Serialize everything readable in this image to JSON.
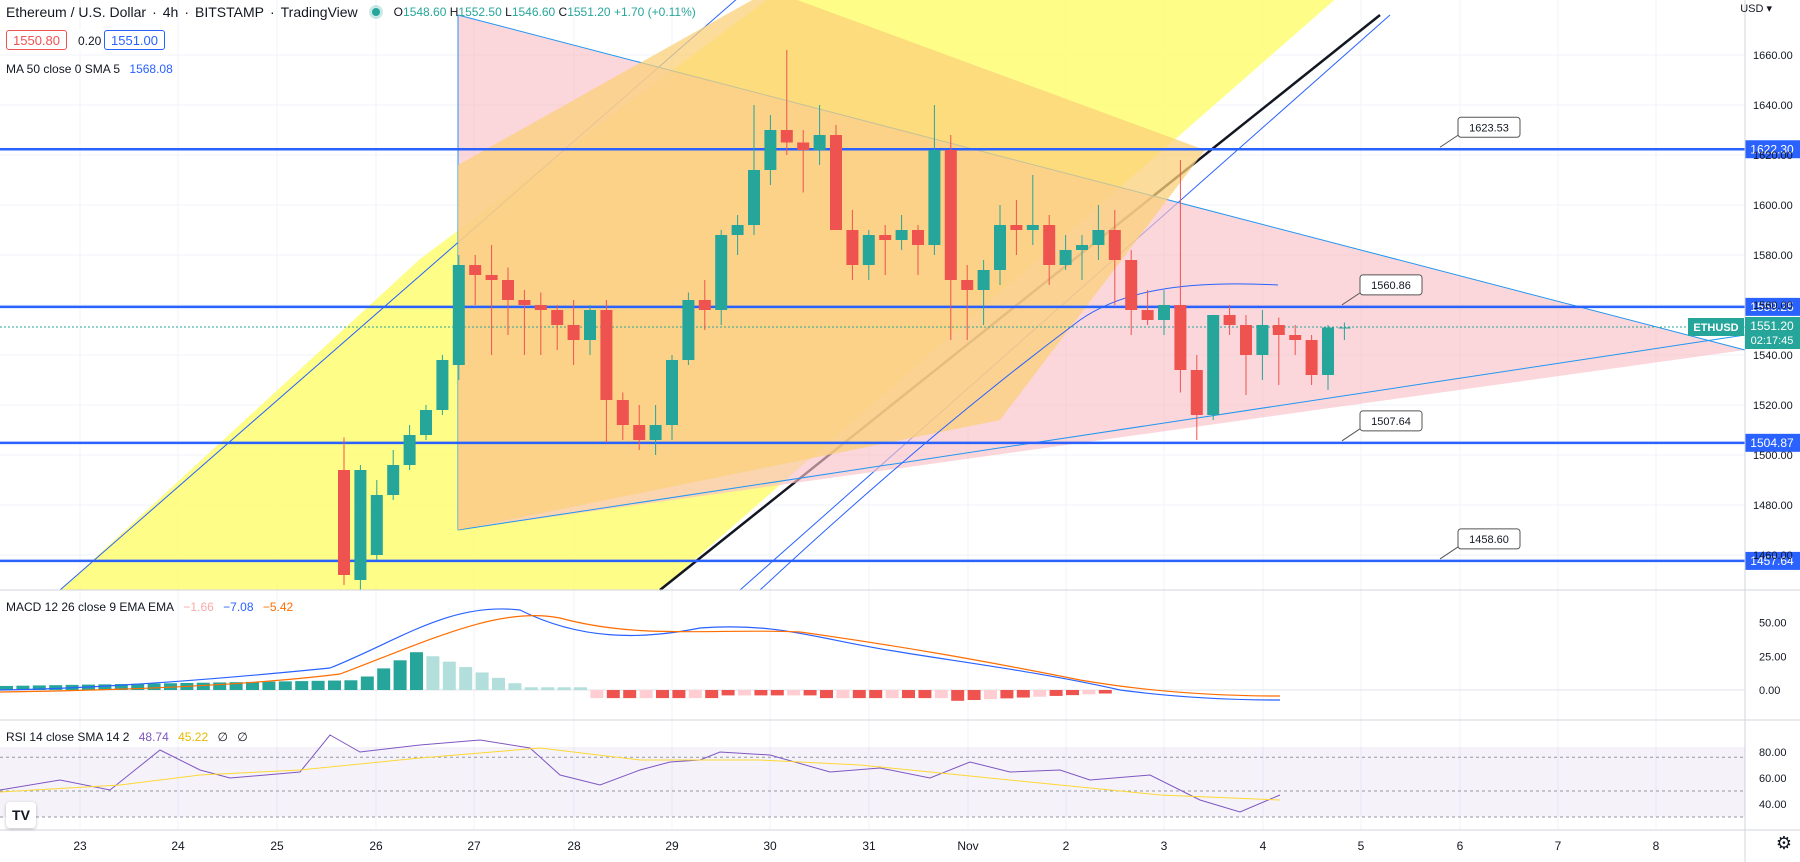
{
  "header": {
    "symbol": "Ethereum / U.S. Dollar",
    "interval": "4h",
    "exchange": "BITSTAMP",
    "platform": "TradingView",
    "ohlc": {
      "o": "1548.60",
      "h": "1552.50",
      "l": "1546.60",
      "c": "1551.20",
      "chg": "+1.70 (+0.11%)"
    },
    "bid": "1550.80",
    "spread": "0.20",
    "ask": "1551.00",
    "currency": "USD"
  },
  "indicators": {
    "ma": {
      "label": "MA 50 close 0 SMA 5",
      "value": "1568.08"
    },
    "macd": {
      "label": "MACD 12 26 close 9 EMA EMA",
      "hist": "−1.66",
      "macd": "−7.08",
      "signal": "−5.42"
    },
    "rsi": {
      "label": "RSI 14 close SMA 14 2",
      "rsi": "48.74",
      "sma": "45.22",
      "x1": "∅",
      "x2": "∅"
    }
  },
  "chart_data": [
    {
      "type": "candlestick",
      "panel": "price",
      "x": [
        "23",
        "24",
        "25",
        "26",
        "27",
        "28",
        "29",
        "30",
        "31",
        "Nov",
        "2",
        "3",
        "4",
        "5",
        "6",
        "7",
        "8"
      ],
      "y_ticks": [
        1460,
        1480,
        1500,
        1520,
        1540,
        1560,
        1580,
        1600,
        1620,
        1640,
        1660
      ],
      "ylim": [
        1446,
        1682
      ],
      "candles": [
        [
          1494,
          1507,
          1448,
          1452
        ],
        [
          1450,
          1496,
          1446,
          1494
        ],
        [
          1460,
          1490,
          1458,
          1484
        ],
        [
          1484,
          1502,
          1482,
          1496
        ],
        [
          1496,
          1512,
          1494,
          1508
        ],
        [
          1508,
          1520,
          1506,
          1518
        ],
        [
          1518,
          1540,
          1516,
          1538
        ],
        [
          1536,
          1580,
          1530,
          1576
        ],
        [
          1576,
          1580,
          1560,
          1572
        ],
        [
          1572,
          1584,
          1540,
          1570
        ],
        [
          1570,
          1575,
          1548,
          1562
        ],
        [
          1562,
          1566,
          1540,
          1560
        ],
        [
          1560,
          1565,
          1540,
          1558
        ],
        [
          1558,
          1560,
          1542,
          1552
        ],
        [
          1552,
          1562,
          1536,
          1546
        ],
        [
          1546,
          1560,
          1540,
          1558
        ],
        [
          1558,
          1562,
          1505,
          1522
        ],
        [
          1522,
          1525,
          1506,
          1512
        ],
        [
          1512,
          1520,
          1502,
          1506
        ],
        [
          1506,
          1520,
          1500,
          1512
        ],
        [
          1512,
          1540,
          1506,
          1538
        ],
        [
          1538,
          1565,
          1536,
          1562
        ],
        [
          1562,
          1570,
          1550,
          1558
        ],
        [
          1558,
          1590,
          1552,
          1588
        ],
        [
          1588,
          1596,
          1580,
          1592
        ],
        [
          1592,
          1640,
          1588,
          1614
        ],
        [
          1614,
          1636,
          1608,
          1630
        ],
        [
          1630,
          1662,
          1620,
          1625
        ],
        [
          1625,
          1630,
          1605,
          1622
        ],
        [
          1622,
          1640,
          1616,
          1628
        ],
        [
          1628,
          1632,
          1590,
          1590
        ],
        [
          1590,
          1598,
          1570,
          1576
        ],
        [
          1576,
          1590,
          1570,
          1588
        ],
        [
          1588,
          1592,
          1572,
          1586
        ],
        [
          1586,
          1596,
          1582,
          1590
        ],
        [
          1590,
          1592,
          1572,
          1584
        ],
        [
          1584,
          1640,
          1580,
          1622
        ],
        [
          1622,
          1628,
          1546,
          1570
        ],
        [
          1570,
          1576,
          1546,
          1566
        ],
        [
          1566,
          1578,
          1552,
          1574
        ],
        [
          1574,
          1600,
          1568,
          1592
        ],
        [
          1592,
          1602,
          1580,
          1590
        ],
        [
          1590,
          1612,
          1584,
          1592
        ],
        [
          1592,
          1596,
          1568,
          1576
        ],
        [
          1576,
          1588,
          1574,
          1582
        ],
        [
          1582,
          1588,
          1570,
          1584
        ],
        [
          1584,
          1600,
          1578,
          1590
        ],
        [
          1590,
          1598,
          1560,
          1578
        ],
        [
          1578,
          1582,
          1548,
          1558
        ],
        [
          1558,
          1566,
          1552,
          1554
        ],
        [
          1554,
          1566,
          1548,
          1560
        ],
        [
          1560,
          1618,
          1525,
          1534
        ],
        [
          1534,
          1540,
          1506,
          1516
        ],
        [
          1516,
          1556,
          1514,
          1556
        ],
        [
          1556,
          1560,
          1548,
          1552
        ],
        [
          1552,
          1556,
          1524,
          1540
        ],
        [
          1540,
          1558,
          1530,
          1552
        ],
        [
          1552,
          1555,
          1528,
          1548
        ],
        [
          1548,
          1552,
          1540,
          1546
        ],
        [
          1546,
          1548,
          1528,
          1532
        ],
        [
          1532,
          1552,
          1526,
          1551
        ],
        [
          1551,
          1553,
          1546,
          1551
        ]
      ],
      "horizontal_levels": [
        {
          "value": 1622.3,
          "callout": "1623.53"
        },
        {
          "value": 1559.25,
          "callout": "1560.86"
        },
        {
          "value": 1504.87,
          "callout": "1507.64"
        },
        {
          "value": 1457.64,
          "callout": "1458.60"
        }
      ],
      "last_price": {
        "value": "1551.20",
        "symbol": "ETHUSD",
        "countdown": "02:17:45"
      },
      "ma50": {
        "value": "1568.08"
      }
    },
    {
      "type": "bar+line",
      "panel": "macd",
      "y_ticks": [
        0.0,
        25.0,
        50.0
      ],
      "series": [
        {
          "name": "MACD",
          "color": "#2962ff"
        },
        {
          "name": "Signal",
          "color": "#ff6d00"
        },
        {
          "name": "Histogram",
          "color": "#26a69a"
        }
      ]
    },
    {
      "type": "line",
      "panel": "rsi",
      "y_ticks": [
        40.0,
        60.0,
        80.0
      ],
      "band": [
        30,
        70
      ],
      "series": [
        {
          "name": "RSI",
          "color": "#7e57c2"
        },
        {
          "name": "SMA",
          "color": "#fdd835"
        }
      ]
    }
  ],
  "axis_labels": {
    "price": [
      "1460.00",
      "1480.00",
      "1500.00",
      "1520.00",
      "1540.00",
      "1560.00",
      "1580.00",
      "1600.00",
      "1620.00",
      "1640.00",
      "1660.00"
    ],
    "macd": [
      "50.00",
      "25.00",
      "0.00"
    ],
    "rsi": [
      "80.00",
      "60.00",
      "40.00"
    ],
    "levels": [
      "1622.30",
      "1559.25",
      "1504.87",
      "1457.64"
    ]
  },
  "colors": {
    "up": "#26a69a",
    "down": "#ef5350",
    "level": "#2962ff",
    "triangle_fill": "#f9c0c6",
    "channel_fill": "#fdfd7a",
    "overlap_fill": "#fbd079"
  }
}
